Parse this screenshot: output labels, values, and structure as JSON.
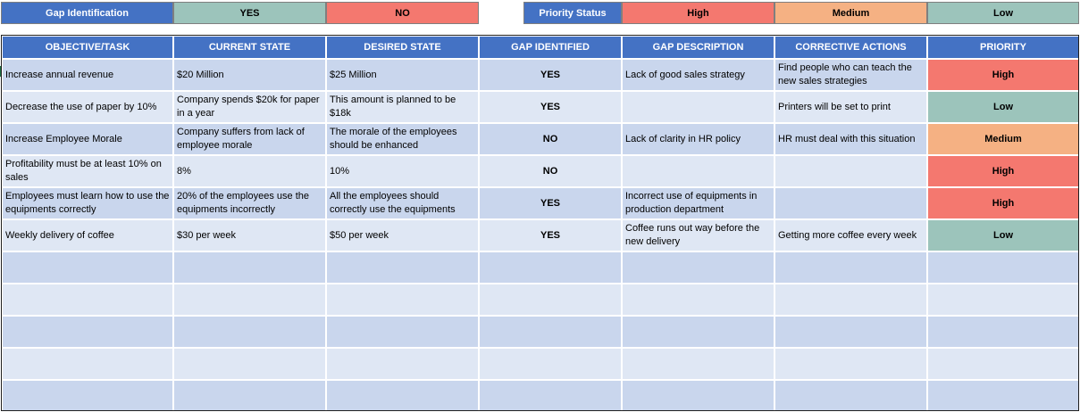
{
  "legend_gap": {
    "label": "Gap Identification",
    "yes": "YES",
    "no": "NO"
  },
  "legend_priority": {
    "label": "Priority Status",
    "high": "High",
    "medium": "Medium",
    "low": "Low"
  },
  "columns": [
    "OBJECTIVE/TASK",
    "CURRENT STATE",
    "DESIRED STATE",
    "GAP IDENTIFIED",
    "GAP DESCRIPTION",
    "CORRECTIVE ACTIONS",
    "PRIORITY"
  ],
  "rows": [
    {
      "objective": "Increase annual revenue",
      "current": "$20 Million",
      "desired": "$25 Million",
      "gap": "YES",
      "description": "Lack of good sales strategy",
      "actions": "Find people who can teach the new sales strategies",
      "priority": "High"
    },
    {
      "objective": "Decrease the use of paper by 10%",
      "current": "Company spends $20k for paper in a year",
      "desired": "This amount is planned to be $18k",
      "gap": "YES",
      "description": "",
      "actions": "Printers will be set to print",
      "priority": "Low"
    },
    {
      "objective": "Increase Employee Morale",
      "current": "Company suffers from lack of employee morale",
      "desired": "The morale of the employees should be enhanced",
      "gap": "NO",
      "description": "Lack of clarity in HR policy",
      "actions": "HR must deal with this situation",
      "priority": "Medium"
    },
    {
      "objective": "Profitability must be at least 10% on sales",
      "current": "8%",
      "desired": "10%",
      "gap": "NO",
      "description": "",
      "actions": "",
      "priority": "High"
    },
    {
      "objective": "Employees must learn how to use the equipments correctly",
      "current": "20% of the employees use the equipments incorrectly",
      "desired": "All the employees should correctly use the equipments",
      "gap": "YES",
      "description": "Incorrect use of equipments in production department",
      "actions": "",
      "priority": "High"
    },
    {
      "objective": "Weekly delivery of coffee",
      "current": "$30 per week",
      "desired": "$50 per week",
      "gap": "YES",
      "description": "Coffee runs out way before the new delivery",
      "actions": "Getting more coffee every week",
      "priority": "Low"
    }
  ],
  "empty_rows": 5,
  "colors": {
    "header_blue": "#4472c4",
    "row_a": "#c9d6ed",
    "row_b": "#dfe7f4",
    "high": "#f4786f",
    "medium": "#f5b183",
    "low": "#9cc4bb"
  }
}
